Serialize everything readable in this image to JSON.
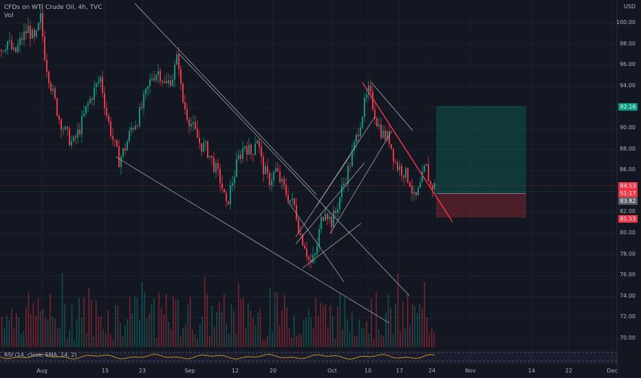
{
  "header": {
    "symbol_line": "CFDs on WTI Crude Oil, 4h, TVC",
    "vol_label": "Vol"
  },
  "currency": "USD",
  "rsi_label": "RSI (14, close, SMA, 14, 2)",
  "price_tags": {
    "target": {
      "text": "92.16",
      "color": "#089981"
    },
    "current": {
      "text": "84.53",
      "color": "#f23645"
    },
    "countdown": {
      "text": "51:17",
      "color": "#f23645"
    },
    "entry": {
      "text": "83.82",
      "color": "#5d606b"
    },
    "stop": {
      "text": "81.53",
      "color": "#f23645"
    }
  },
  "colors": {
    "up": "#089981",
    "down": "#f23645",
    "trendline": "#b2b5be",
    "resistance": "#f23645",
    "rsi": "#d4a017",
    "background": "#131722"
  },
  "chart_data": {
    "type": "candlestick",
    "title": "CFDs on WTI Crude Oil, 4h, TVC",
    "y_axis": {
      "unit": "USD",
      "ticks": [
        70,
        72,
        74,
        76,
        78,
        80,
        82,
        84,
        86,
        88,
        90,
        92,
        94,
        96,
        98,
        100
      ],
      "ylim": [
        69,
        101.5
      ]
    },
    "x_axis": {
      "ticks": [
        "Aug",
        "15",
        "23",
        "Sep",
        "12",
        "20",
        "Oct",
        "10",
        "17",
        "24",
        "Nov",
        "14",
        "22",
        "Dec"
      ]
    },
    "price_path": [
      [
        0,
        97.5
      ],
      [
        10,
        98.3
      ],
      [
        20,
        97
      ],
      [
        30,
        98.5
      ],
      [
        40,
        99.5
      ],
      [
        50,
        98.2
      ],
      [
        58,
        100.5
      ],
      [
        65,
        96.5
      ],
      [
        75,
        93.5
      ],
      [
        85,
        91
      ],
      [
        95,
        89.5
      ],
      [
        105,
        88.5
      ],
      [
        115,
        90
      ],
      [
        125,
        92
      ],
      [
        135,
        93.5
      ],
      [
        145,
        94.8
      ],
      [
        155,
        91
      ],
      [
        165,
        88.5
      ],
      [
        172,
        87
      ],
      [
        180,
        88
      ],
      [
        190,
        90
      ],
      [
        200,
        91
      ],
      [
        210,
        93
      ],
      [
        220,
        95
      ],
      [
        230,
        95.5
      ],
      [
        240,
        94
      ],
      [
        250,
        95
      ],
      [
        258,
        97
      ],
      [
        263,
        93
      ],
      [
        270,
        91.5
      ],
      [
        280,
        90
      ],
      [
        290,
        88.5
      ],
      [
        300,
        88
      ],
      [
        310,
        86.5
      ],
      [
        320,
        85
      ],
      [
        328,
        82.5
      ],
      [
        335,
        84.5
      ],
      [
        345,
        87
      ],
      [
        355,
        88.5
      ],
      [
        365,
        87.5
      ],
      [
        372,
        89.5
      ],
      [
        380,
        86.5
      ],
      [
        390,
        85
      ],
      [
        400,
        86
      ],
      [
        410,
        84.5
      ],
      [
        418,
        83.5
      ],
      [
        428,
        82.5
      ],
      [
        435,
        80
      ],
      [
        442,
        79
      ],
      [
        450,
        77
      ],
      [
        458,
        78
      ],
      [
        465,
        81
      ],
      [
        472,
        82.5
      ],
      [
        480,
        81
      ],
      [
        487,
        82
      ],
      [
        495,
        84
      ],
      [
        505,
        86
      ],
      [
        515,
        88.5
      ],
      [
        522,
        90.5
      ],
      [
        528,
        92
      ],
      [
        535,
        93.5
      ],
      [
        540,
        92.5
      ],
      [
        548,
        90.5
      ],
      [
        555,
        89.5
      ],
      [
        565,
        89
      ],
      [
        575,
        86.5
      ],
      [
        585,
        86
      ],
      [
        595,
        85
      ],
      [
        602,
        83
      ],
      [
        610,
        84.5
      ],
      [
        618,
        86.5
      ],
      [
        625,
        84.5
      ],
      [
        632,
        84.53
      ]
    ],
    "volume_bars": 180,
    "trendlines_price_coords": [
      {
        "from": [
          196,
          5
        ],
        "to": [
          460,
          283
        ],
        "kind": "channel-upper"
      },
      {
        "from": [
          168,
          228
        ],
        "to": [
          566,
          470
        ],
        "kind": "channel-lower"
      }
    ],
    "position": {
      "entry": 83.82,
      "target": 92.16,
      "stop": 81.53,
      "last": 84.53
    },
    "rsi": {
      "period": 14,
      "source": "close",
      "smoothing": "SMA",
      "smoothing_length": 14,
      "std": 2
    }
  },
  "x_labels": [
    {
      "t": "Aug",
      "x": 61
    },
    {
      "t": "15",
      "x": 153
    },
    {
      "t": "23",
      "x": 207
    },
    {
      "t": "Sep",
      "x": 276
    },
    {
      "t": "12",
      "x": 342
    },
    {
      "t": "20",
      "x": 397
    },
    {
      "t": "Oct",
      "x": 483
    },
    {
      "t": "10",
      "x": 535
    },
    {
      "t": "17",
      "x": 581
    },
    {
      "t": "24",
      "x": 628
    },
    {
      "t": "Nov",
      "x": 684
    },
    {
      "t": "14",
      "x": 773
    },
    {
      "t": "22",
      "x": 827
    },
    {
      "t": "Dec",
      "x": 890
    }
  ]
}
